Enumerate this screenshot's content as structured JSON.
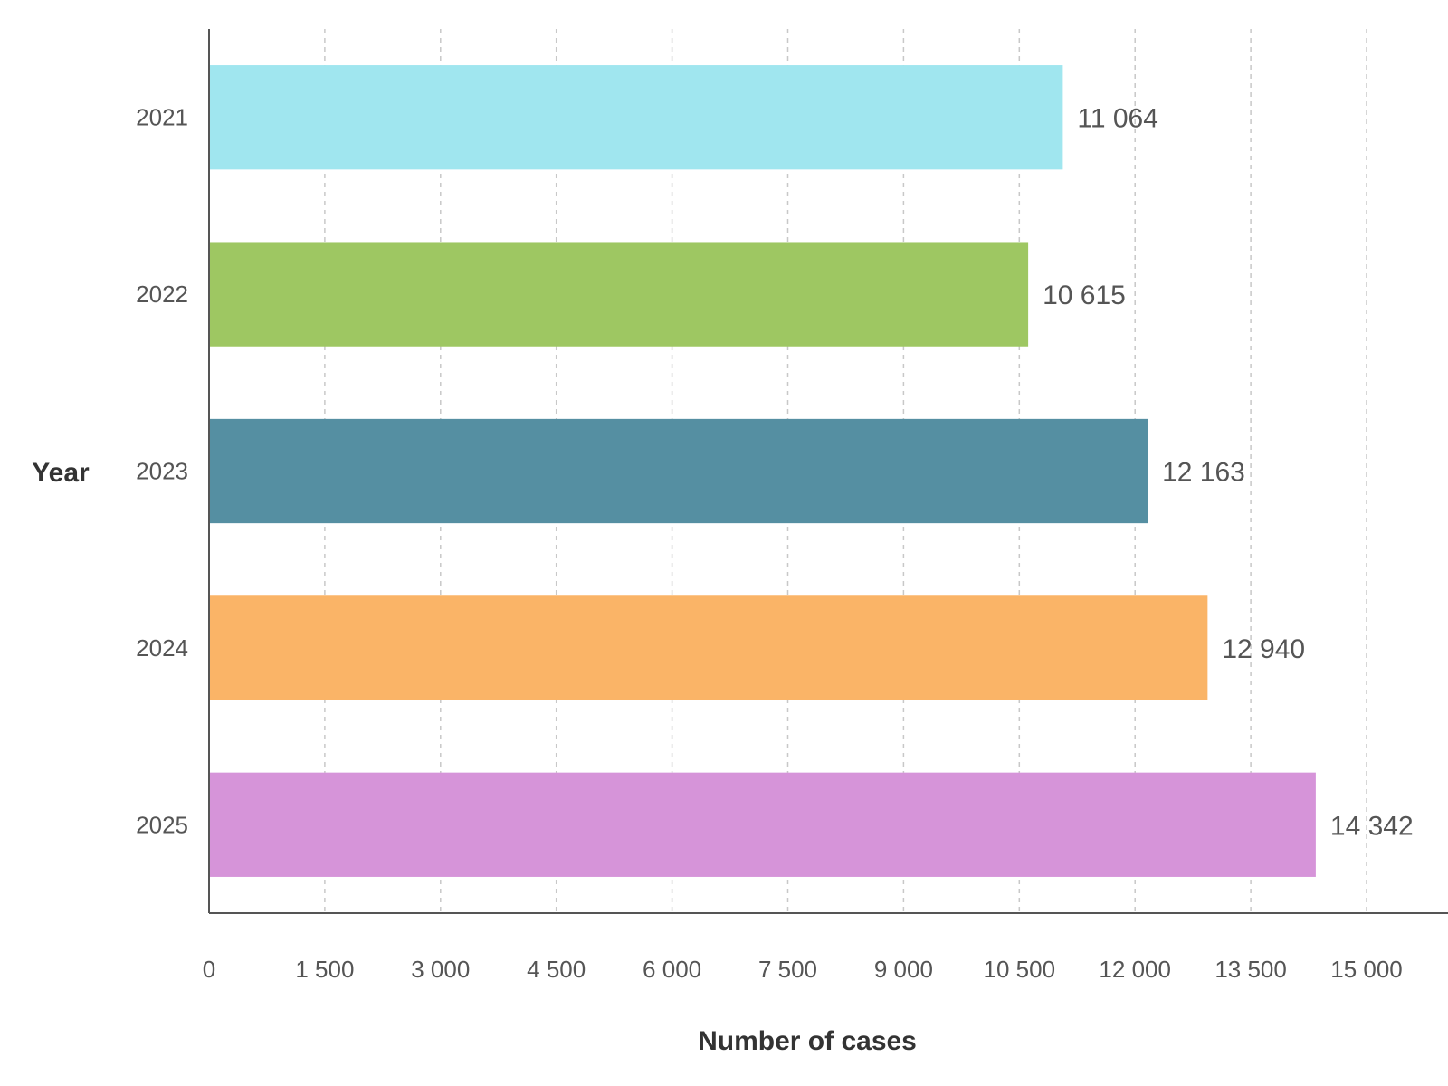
{
  "chart_data": {
    "type": "bar",
    "orientation": "horizontal",
    "title": "",
    "xlabel": "Number of cases",
    "ylabel": "Year",
    "xlim": [
      0,
      15000
    ],
    "x_ticks": [
      0,
      1500,
      3000,
      4500,
      6000,
      7500,
      9000,
      10500,
      12000,
      13500,
      15000
    ],
    "x_tick_labels": [
      "0",
      "1 500",
      "3 000",
      "4 500",
      "6 000",
      "7 500",
      "9 000",
      "10 500",
      "12 000",
      "13 500",
      "15 000"
    ],
    "grid": "vertical dashed",
    "legend": "none",
    "categories": [
      "2021",
      "2022",
      "2023",
      "2024",
      "2025"
    ],
    "values": [
      11064,
      10615,
      12163,
      12940,
      14342
    ],
    "value_labels": [
      "11 064",
      "10 615",
      "12 163",
      "12 940",
      "14 342"
    ],
    "colors": [
      "#a0e6ef",
      "#9ec762",
      "#558fa2",
      "#fab467",
      "#d694d9"
    ]
  }
}
